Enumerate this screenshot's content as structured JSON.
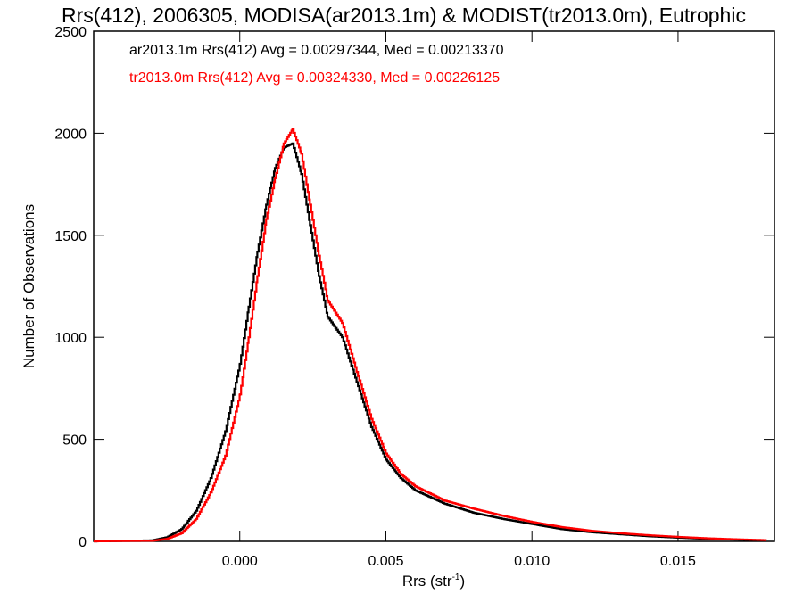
{
  "chart_data": {
    "type": "line",
    "title": "Rrs(412), 2006305, MODISA(ar2013.1m) & MODIST(tr2013.0m), Eutrophic",
    "xlabel_main": "Rrs (str",
    "xlabel_sup": "-1",
    "xlabel_end": ")",
    "ylabel": "Number of Observations",
    "xlim": [
      -0.005,
      0.0183
    ],
    "ylim": [
      0,
      2500
    ],
    "xticks": [
      0.0,
      0.005,
      0.01,
      0.015
    ],
    "xtick_labels": [
      "0.000",
      "0.005",
      "0.010",
      "0.015"
    ],
    "yticks": [
      0,
      500,
      1000,
      1500,
      2000,
      2500
    ],
    "ytick_labels": [
      "0",
      "500",
      "1000",
      "1500",
      "2000",
      "2500"
    ],
    "grid": false,
    "legend_position": "top-left",
    "series": [
      {
        "name": "ar2013.1m",
        "label": "ar2013.1m Rrs(412) Avg = 0.00297344, Med = 0.00213370",
        "color": "#000000",
        "x": [
          -0.005,
          -0.003,
          -0.0025,
          -0.002,
          -0.0015,
          -0.001,
          -0.0005,
          0.0,
          0.0003,
          0.0006,
          0.0009,
          0.0012,
          0.0015,
          0.0018,
          0.0021,
          0.0024,
          0.0027,
          0.003,
          0.0035,
          0.004,
          0.0045,
          0.005,
          0.0055,
          0.006,
          0.007,
          0.008,
          0.009,
          0.01,
          0.011,
          0.012,
          0.013,
          0.014,
          0.015,
          0.016,
          0.017,
          0.018
        ],
        "y": [
          0,
          5,
          20,
          60,
          150,
          310,
          540,
          870,
          1150,
          1420,
          1650,
          1830,
          1930,
          1950,
          1800,
          1550,
          1300,
          1100,
          1000,
          780,
          560,
          400,
          310,
          250,
          185,
          140,
          110,
          85,
          60,
          45,
          35,
          25,
          18,
          12,
          8,
          5
        ]
      },
      {
        "name": "tr2013.0m",
        "label": "tr2013.0m Rrs(412) Avg = 0.00324330, Med = 0.00226125",
        "color": "#ff0000",
        "x": [
          -0.005,
          -0.003,
          -0.0025,
          -0.002,
          -0.0015,
          -0.001,
          -0.0005,
          0.0,
          0.0003,
          0.0006,
          0.0009,
          0.0012,
          0.0015,
          0.0018,
          0.0021,
          0.0024,
          0.0027,
          0.003,
          0.0035,
          0.004,
          0.0045,
          0.005,
          0.0055,
          0.006,
          0.007,
          0.008,
          0.009,
          0.01,
          0.011,
          0.012,
          0.013,
          0.014,
          0.015,
          0.016,
          0.017,
          0.018
        ],
        "y": [
          0,
          3,
          12,
          40,
          110,
          240,
          420,
          720,
          1000,
          1300,
          1580,
          1780,
          1950,
          2020,
          1900,
          1650,
          1400,
          1180,
          1070,
          830,
          600,
          430,
          330,
          270,
          200,
          160,
          125,
          95,
          70,
          52,
          40,
          30,
          22,
          15,
          10,
          6
        ]
      }
    ]
  }
}
